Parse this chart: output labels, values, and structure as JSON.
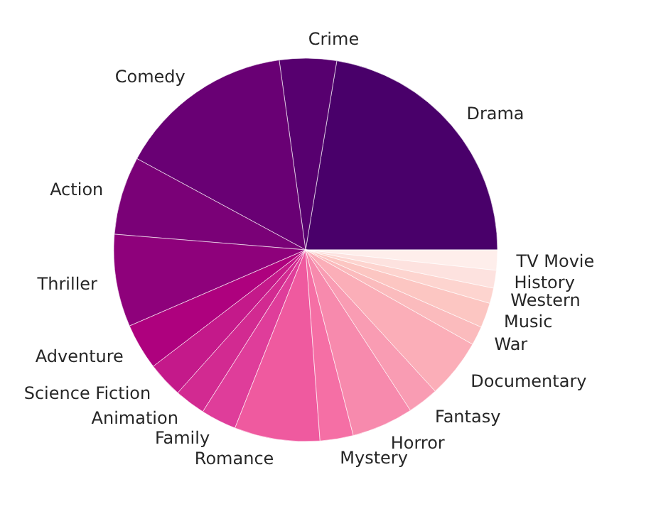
{
  "chart_data": {
    "type": "pie",
    "categories": [
      "Drama",
      "Crime",
      "Comedy",
      "Action",
      "Thriller",
      "Adventure",
      "Science Fiction",
      "Animation",
      "Family",
      "Romance",
      "Mystery",
      "Horror",
      "Fantasy",
      "Documentary",
      "War",
      "Music",
      "Western",
      "History",
      "TV Movie"
    ],
    "values": [
      22.4,
      4.8,
      14.9,
      6.6,
      7.8,
      3.9,
      3.0,
      2.6,
      3.0,
      7.2,
      2.8,
      5.2,
      2.6,
      5.0,
      1.6,
      2.1,
      1.3,
      1.5,
      1.7
    ],
    "colors": [
      "#49006a",
      "#57006f",
      "#690074",
      "#7a0177",
      "#8e017b",
      "#ae017e",
      "#c4198a",
      "#d22a91",
      "#df3d9a",
      "#ef5a9f",
      "#f56fa5",
      "#f78aad",
      "#f99cb3",
      "#fbaeb8",
      "#fbbbbd",
      "#fcc6c2",
      "#fdd4cf",
      "#fde2df",
      "#feeeeb"
    ]
  }
}
